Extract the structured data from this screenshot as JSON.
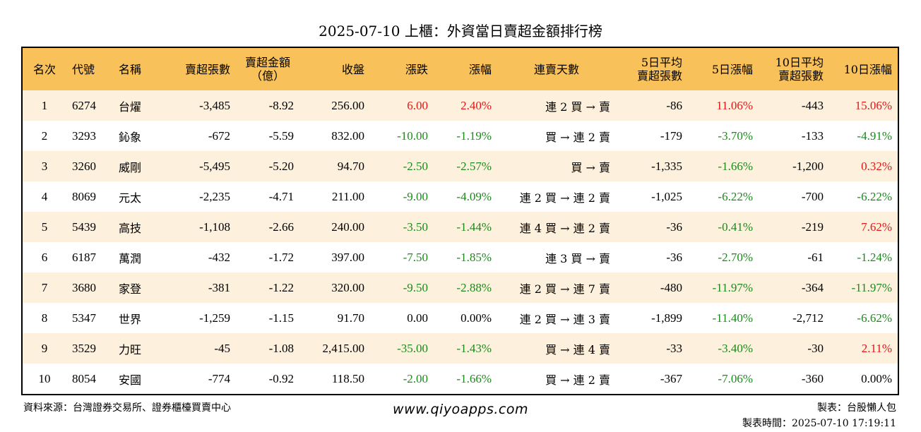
{
  "title": "2025-07-10 上櫃：外資當日賣超金額排行榜",
  "colors": {
    "header_bg": "#f8c15a",
    "row_alt_bg": "#fdf0dc",
    "up": "#e01818",
    "down": "#1c8a1c",
    "flat": "#000000"
  },
  "headers": {
    "rank": "名次",
    "code": "代號",
    "name": "名稱",
    "sell_shares": "賣超張數",
    "sell_amount_1": "賣超金額",
    "sell_amount_2": "（億）",
    "close": "收盤",
    "change": "漲跌",
    "change_pct": "漲幅",
    "streak": "連賣天數",
    "avg5_1": "5日平均",
    "avg5_2": "賣超張數",
    "chg5": "5日漲幅",
    "avg10_1": "10日平均",
    "avg10_2": "賣超張數",
    "chg10": "10日漲幅"
  },
  "rows": [
    {
      "rank": "1",
      "code": "6274",
      "name": "台燿",
      "sell_shares": "-3,485",
      "sell_amount": "-8.92",
      "close": "256.00",
      "change": "6.00",
      "change_dir": "up",
      "change_pct": "2.40%",
      "change_pct_dir": "up",
      "streak": "連 2 買 → 賣",
      "avg5": "-86",
      "chg5": "11.06%",
      "chg5_dir": "up",
      "avg10": "-443",
      "chg10": "15.06%",
      "chg10_dir": "up"
    },
    {
      "rank": "2",
      "code": "3293",
      "name": "鈊象",
      "sell_shares": "-672",
      "sell_amount": "-5.59",
      "close": "832.00",
      "change": "-10.00",
      "change_dir": "down",
      "change_pct": "-1.19%",
      "change_pct_dir": "down",
      "streak": "買 → 連 2 賣",
      "avg5": "-179",
      "chg5": "-3.70%",
      "chg5_dir": "down",
      "avg10": "-133",
      "chg10": "-4.91%",
      "chg10_dir": "down"
    },
    {
      "rank": "3",
      "code": "3260",
      "name": "威剛",
      "sell_shares": "-5,495",
      "sell_amount": "-5.20",
      "close": "94.70",
      "change": "-2.50",
      "change_dir": "down",
      "change_pct": "-2.57%",
      "change_pct_dir": "down",
      "streak": "買 → 賣",
      "avg5": "-1,335",
      "chg5": "-1.66%",
      "chg5_dir": "down",
      "avg10": "-1,200",
      "chg10": "0.32%",
      "chg10_dir": "up"
    },
    {
      "rank": "4",
      "code": "8069",
      "name": "元太",
      "sell_shares": "-2,235",
      "sell_amount": "-4.71",
      "close": "211.00",
      "change": "-9.00",
      "change_dir": "down",
      "change_pct": "-4.09%",
      "change_pct_dir": "down",
      "streak": "連 2 買 → 連 2 賣",
      "avg5": "-1,025",
      "chg5": "-6.22%",
      "chg5_dir": "down",
      "avg10": "-700",
      "chg10": "-6.22%",
      "chg10_dir": "down"
    },
    {
      "rank": "5",
      "code": "5439",
      "name": "高技",
      "sell_shares": "-1,108",
      "sell_amount": "-2.66",
      "close": "240.00",
      "change": "-3.50",
      "change_dir": "down",
      "change_pct": "-1.44%",
      "change_pct_dir": "down",
      "streak": "連 4 買 → 連 2 賣",
      "avg5": "-36",
      "chg5": "-0.41%",
      "chg5_dir": "down",
      "avg10": "-219",
      "chg10": "7.62%",
      "chg10_dir": "up"
    },
    {
      "rank": "6",
      "code": "6187",
      "name": "萬潤",
      "sell_shares": "-432",
      "sell_amount": "-1.72",
      "close": "397.00",
      "change": "-7.50",
      "change_dir": "down",
      "change_pct": "-1.85%",
      "change_pct_dir": "down",
      "streak": "連 3 買 → 賣",
      "avg5": "-36",
      "chg5": "-2.70%",
      "chg5_dir": "down",
      "avg10": "-61",
      "chg10": "-1.24%",
      "chg10_dir": "down"
    },
    {
      "rank": "7",
      "code": "3680",
      "name": "家登",
      "sell_shares": "-381",
      "sell_amount": "-1.22",
      "close": "320.00",
      "change": "-9.50",
      "change_dir": "down",
      "change_pct": "-2.88%",
      "change_pct_dir": "down",
      "streak": "連 2 買 → 連 7 賣",
      "avg5": "-480",
      "chg5": "-11.97%",
      "chg5_dir": "down",
      "avg10": "-364",
      "chg10": "-11.97%",
      "chg10_dir": "down"
    },
    {
      "rank": "8",
      "code": "5347",
      "name": "世界",
      "sell_shares": "-1,259",
      "sell_amount": "-1.15",
      "close": "91.70",
      "change": "0.00",
      "change_dir": "flat",
      "change_pct": "0.00%",
      "change_pct_dir": "flat",
      "streak": "連 2 買 → 連 3 賣",
      "avg5": "-1,899",
      "chg5": "-11.40%",
      "chg5_dir": "down",
      "avg10": "-2,712",
      "chg10": "-6.62%",
      "chg10_dir": "down"
    },
    {
      "rank": "9",
      "code": "3529",
      "name": "力旺",
      "sell_shares": "-45",
      "sell_amount": "-1.08",
      "close": "2,415.00",
      "change": "-35.00",
      "change_dir": "down",
      "change_pct": "-1.43%",
      "change_pct_dir": "down",
      "streak": "買 → 連 4 賣",
      "avg5": "-33",
      "chg5": "-3.40%",
      "chg5_dir": "down",
      "avg10": "-30",
      "chg10": "2.11%",
      "chg10_dir": "up"
    },
    {
      "rank": "10",
      "code": "8054",
      "name": "安國",
      "sell_shares": "-774",
      "sell_amount": "-0.92",
      "close": "118.50",
      "change": "-2.00",
      "change_dir": "down",
      "change_pct": "-1.66%",
      "change_pct_dir": "down",
      "streak": "買 → 連 2 賣",
      "avg5": "-367",
      "chg5": "-7.06%",
      "chg5_dir": "down",
      "avg10": "-360",
      "chg10": "0.00%",
      "chg10_dir": "flat"
    }
  ],
  "footer": {
    "source": "資料來源：台灣證券交易所、證券櫃檯買賣中心",
    "website": "www.qiyoapps.com",
    "maker": "製表：台股懶人包",
    "made_time": "製表時間：2025-07-10 17:19:11"
  }
}
